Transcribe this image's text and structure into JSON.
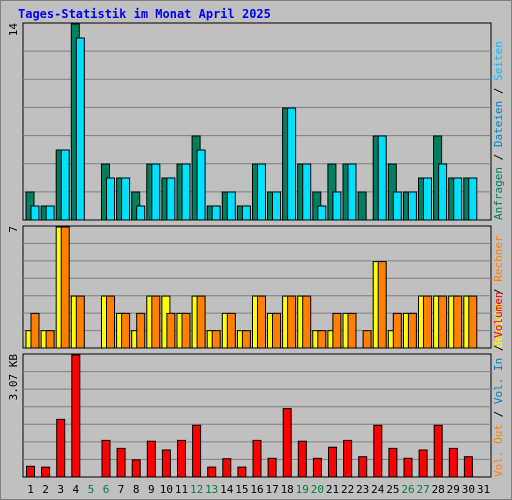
{
  "title": "Tages-Statistik im Monat April 2025",
  "colors": {
    "background": "#c0c0c0",
    "title": "#0000ff",
    "grid": "#808080",
    "frame": "#000000",
    "hits": "#008060",
    "files": "#00e0ff",
    "pages": "#00c0ff",
    "visits": "#ffff00",
    "sites": "#ff8000",
    "kbytes": "#ff0000",
    "weekend_label": "#008040"
  },
  "axis_labels": {
    "top_max": "14",
    "mid_max": "7",
    "bottom_max": "3.07 KB"
  },
  "right_legend": {
    "top": [
      {
        "text": "Anfragen",
        "color": "#008060"
      },
      {
        "text": "Dateien",
        "color": "#0080c0"
      },
      {
        "text": "Seiten",
        "color": "#00c0ff"
      }
    ],
    "mid": [
      {
        "text": "Besuche",
        "color": "#ffff00"
      },
      {
        "text": "Rechner",
        "color": "#ff8000"
      }
    ],
    "bottom": [
      {
        "text": "Vol. Out",
        "color": "#ff8000"
      },
      {
        "text": "Vol. In",
        "color": "#0080c0"
      },
      {
        "text": "Volumen",
        "color": "#ff0000"
      }
    ],
    "separator": " / ",
    "separator_color": "#000000"
  },
  "chart_data": {
    "type": "bar",
    "title": "Tages-Statistik im Monat April 2025",
    "categories": [
      "1",
      "2",
      "3",
      "4",
      "5",
      "6",
      "7",
      "8",
      "9",
      "10",
      "11",
      "12",
      "13",
      "14",
      "15",
      "16",
      "17",
      "18",
      "19",
      "20",
      "21",
      "22",
      "23",
      "24",
      "25",
      "26",
      "27",
      "28",
      "29",
      "30",
      "31"
    ],
    "weekend_days": [
      "5",
      "6",
      "12",
      "13",
      "19",
      "20",
      "26",
      "27"
    ],
    "panels": [
      {
        "name": "top",
        "ylim": [
          0,
          14
        ],
        "series": [
          {
            "name": "Anfragen",
            "values": [
              2,
              1,
              5,
              14,
              0,
              4,
              3,
              2,
              4,
              3,
              4,
              6,
              1,
              2,
              1,
              4,
              2,
              8,
              4,
              2,
              4,
              4,
              2,
              6,
              4,
              2,
              3,
              6,
              3,
              3,
              0
            ]
          },
          {
            "name": "Dateien",
            "values": [
              1,
              1,
              5,
              13,
              0,
              3,
              3,
              1,
              4,
              3,
              4,
              5,
              1,
              2,
              1,
              4,
              2,
              8,
              4,
              1,
              2,
              4,
              0,
              6,
              2,
              2,
              3,
              4,
              3,
              3,
              0
            ]
          }
        ]
      },
      {
        "name": "mid",
        "ylim": [
          0,
          7
        ],
        "series": [
          {
            "name": "Besuche",
            "values": [
              1,
              1,
              7,
              3,
              0,
              3,
              2,
              1,
              3,
              3,
              2,
              3,
              1,
              2,
              1,
              3,
              2,
              3,
              3,
              1,
              1,
              2,
              0,
              5,
              1,
              2,
              3,
              3,
              3,
              3,
              0
            ]
          },
          {
            "name": "Rechner",
            "values": [
              2,
              1,
              7,
              3,
              0,
              3,
              2,
              2,
              3,
              2,
              2,
              3,
              1,
              2,
              1,
              3,
              2,
              3,
              3,
              1,
              2,
              2,
              1,
              5,
              2,
              2,
              3,
              3,
              3,
              3,
              0
            ]
          }
        ]
      },
      {
        "name": "bottom",
        "ylim": [
          0,
          3.07
        ],
        "ylabel": "3.07 KB",
        "series": [
          {
            "name": "Volumen",
            "values": [
              0.27,
              0.25,
              1.45,
              3.07,
              0,
              0.92,
              0.72,
              0.43,
              0.9,
              0.68,
              0.92,
              1.3,
              0.25,
              0.46,
              0.25,
              0.92,
              0.47,
              1.72,
              0.9,
              0.47,
              0.75,
              0.92,
              0.51,
              1.3,
              0.72,
              0.47,
              0.68,
              1.3,
              0.72,
              0.51,
              0
            ]
          }
        ]
      }
    ]
  }
}
